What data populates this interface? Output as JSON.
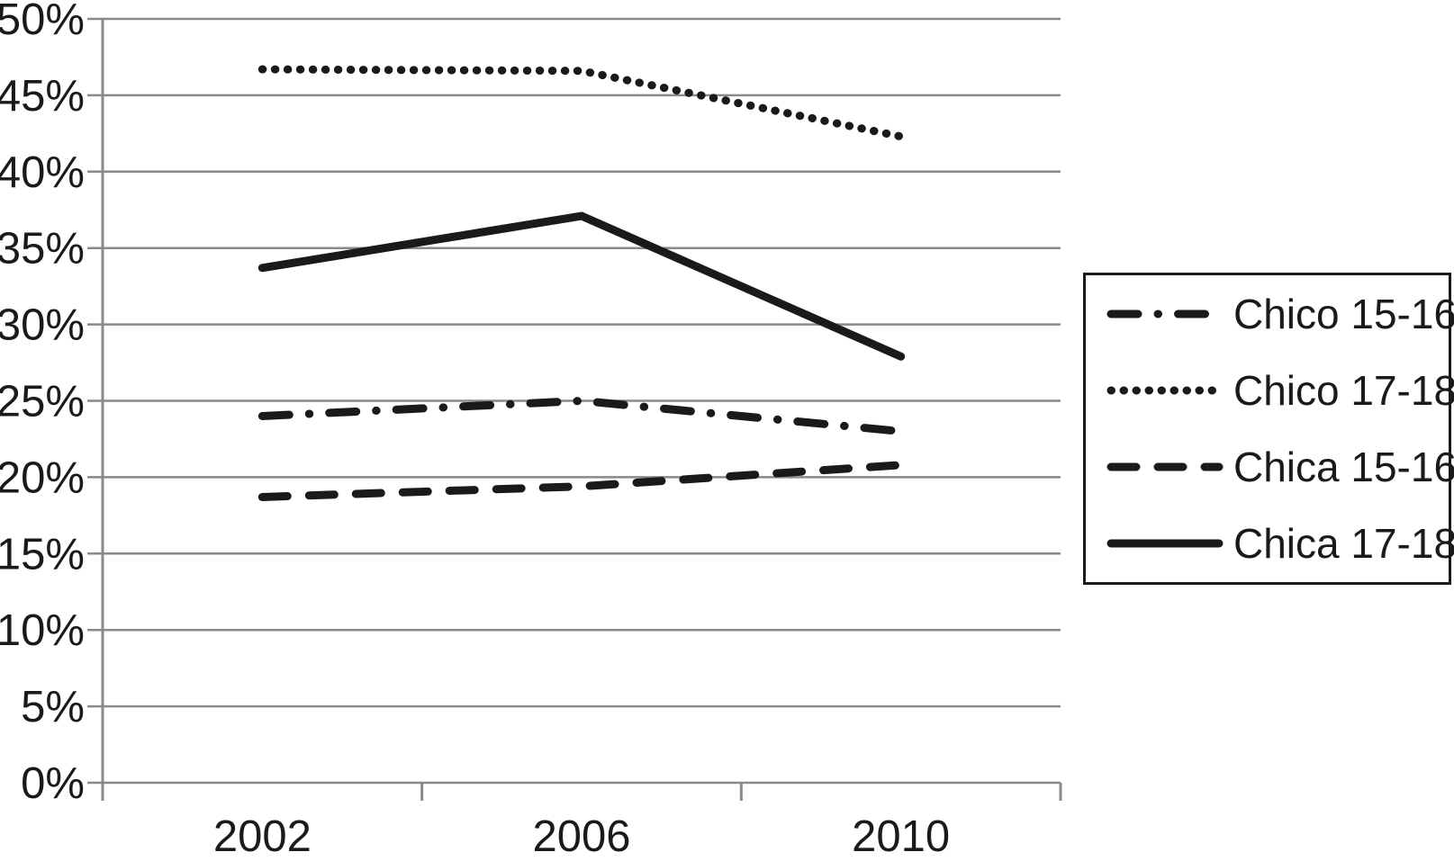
{
  "chart_data": {
    "type": "line",
    "title": "",
    "xlabel": "",
    "ylabel": "",
    "categories": [
      "2002",
      "2006",
      "2010"
    ],
    "series": [
      {
        "name": "Chico 15-16",
        "line_style": "dashdot",
        "values": [
          24.0,
          25.0,
          23.0
        ]
      },
      {
        "name": "Chico 17-18",
        "line_style": "dotted",
        "values": [
          46.7,
          46.6,
          42.3
        ]
      },
      {
        "name": "Chica 15-16",
        "line_style": "dashed",
        "values": [
          18.7,
          19.4,
          20.8
        ]
      },
      {
        "name": "Chica 17-18",
        "line_style": "solid",
        "values": [
          33.7,
          37.1,
          27.9
        ]
      }
    ],
    "ylim": [
      0,
      50
    ],
    "ytick_step": 5,
    "ytick_labels": [
      "0%",
      "5%",
      "10%",
      "15%",
      "20%",
      "25%",
      "30%",
      "35%",
      "40%",
      "45%",
      "50%"
    ],
    "grid": true,
    "legend_position": "right",
    "colors": {
      "line": "#1a1a1a",
      "grid": "#8a8a8a",
      "axis": "#8a8a8a",
      "text": "#1a1a1a",
      "background": "#ffffff",
      "legend_border": "#1a1a1a"
    }
  }
}
